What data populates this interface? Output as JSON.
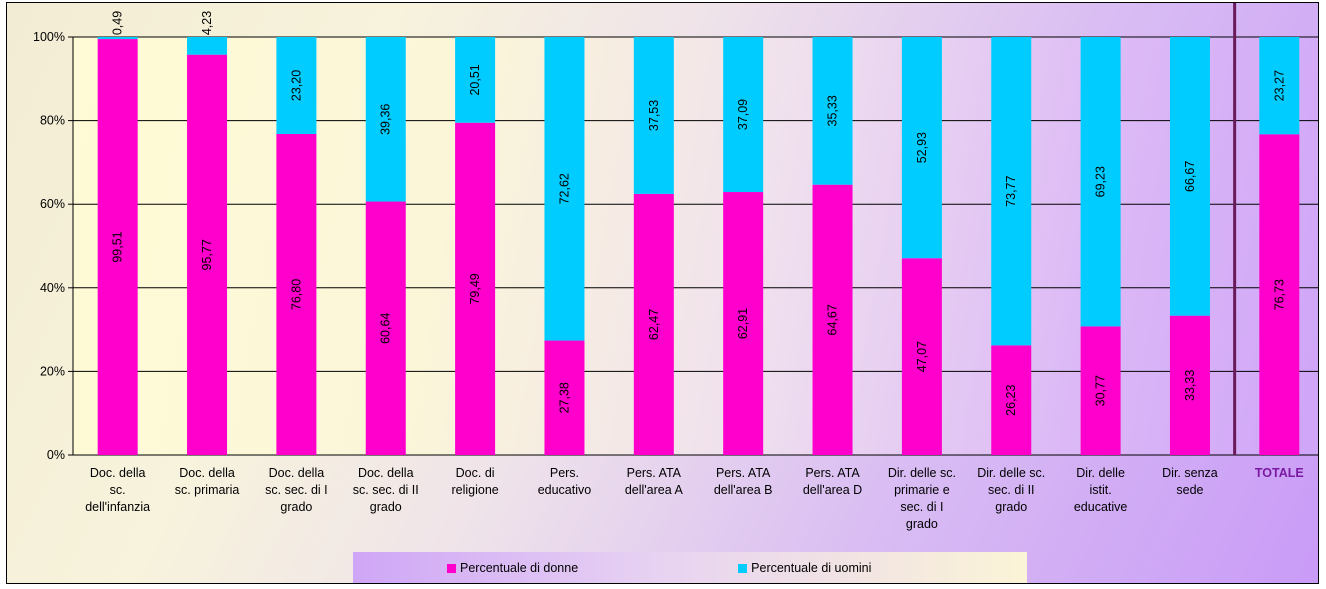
{
  "chart_data": {
    "type": "bar",
    "stacked": true,
    "percent_stacked": true,
    "categories": [
      "Doc. della sc. dell'infanzia",
      "Doc. della sc. primaria",
      "Doc. della sc. sec. di I grado",
      "Doc. della sc. sec. di II grado",
      "Doc. di religione",
      "Pers. educativo",
      "Pers. ATA dell'area A",
      "Pers. ATA dell'area B",
      "Pers. ATA dell'area D",
      "Dir. delle sc. primarie e sec. di I grado",
      "Dir. delle sc. sec. di II grado",
      "Dir. delle istit. educative",
      "Dir. senza sede",
      "TOTALE"
    ],
    "category_lines": [
      [
        "Doc. della",
        "sc.",
        "dell'infanzia"
      ],
      [
        "Doc. della",
        "sc. primaria"
      ],
      [
        "Doc. della",
        "sc. sec. di I",
        "grado"
      ],
      [
        "Doc. della",
        "sc. sec. di II",
        "grado"
      ],
      [
        "Doc. di",
        "religione"
      ],
      [
        "Pers.",
        "educativo"
      ],
      [
        "Pers. ATA",
        "dell'area A"
      ],
      [
        "Pers. ATA",
        "dell'area B"
      ],
      [
        "Pers. ATA",
        "dell'area D"
      ],
      [
        "Dir. delle sc.",
        "primarie e",
        "sec. di I",
        "grado"
      ],
      [
        "Dir. delle sc.",
        "sec. di II",
        "grado"
      ],
      [
        "Dir. delle",
        "istit.",
        "educative"
      ],
      [
        "Dir. senza",
        "sede"
      ],
      [
        "TOTALE"
      ]
    ],
    "series": [
      {
        "name": "Percentuale di donne",
        "color": "#ff00cc",
        "values": [
          99.51,
          95.77,
          76.8,
          60.64,
          79.49,
          27.38,
          62.47,
          62.91,
          64.67,
          47.07,
          26.23,
          30.77,
          33.33,
          76.73
        ],
        "labels": [
          "99,51",
          "95,77",
          "76,80",
          "60,64",
          "79,49",
          "27,38",
          "62,47",
          "62,91",
          "64,67",
          "47,07",
          "26,23",
          "30,77",
          "33,33",
          "76,73"
        ]
      },
      {
        "name": "Percentuale di uomini",
        "color": "#00ccff",
        "values": [
          0.49,
          4.23,
          23.2,
          39.36,
          20.51,
          72.62,
          37.53,
          37.09,
          35.33,
          52.93,
          73.77,
          69.23,
          66.67,
          23.27
        ],
        "labels": [
          "0,49",
          "4,23",
          "23,20",
          "39,36",
          "20,51",
          "72,62",
          "37,53",
          "37,09",
          "35,33",
          "52,93",
          "73,77",
          "69,23",
          "66,67",
          "23,27"
        ]
      }
    ],
    "y_ticks": [
      "0%",
      "20%",
      "40%",
      "60%",
      "80%",
      "100%"
    ],
    "ylim": [
      0,
      100
    ],
    "grid": true,
    "legend_position": "bottom",
    "separator_before_category": "TOTALE",
    "separator_color": "#6a1a5a",
    "total_label_color": "#7a1aa0"
  }
}
